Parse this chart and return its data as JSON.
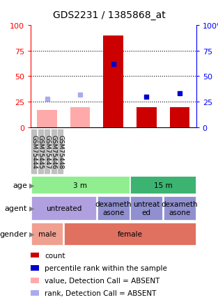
{
  "title": "GDS2231 / 1385868_at",
  "samples": [
    "GSM75444",
    "GSM75445",
    "GSM75447",
    "GSM75446",
    "GSM75448"
  ],
  "count_values": [
    0,
    0,
    90,
    20,
    20
  ],
  "count_absent": [
    17,
    20,
    0,
    0,
    0
  ],
  "percentile_rank": [
    null,
    null,
    62,
    30,
    33
  ],
  "rank_absent": [
    28,
    32,
    null,
    null,
    null
  ],
  "ylim": [
    0,
    100
  ],
  "dotted_lines": [
    25,
    50,
    75
  ],
  "age_groups": [
    {
      "label": "3 m",
      "cols": [
        0,
        1,
        2
      ],
      "color": "#90ee90"
    },
    {
      "label": "15 m",
      "cols": [
        3,
        4
      ],
      "color": "#3cb371"
    }
  ],
  "agent_groups": [
    {
      "label": "untreated",
      "cols": [
        0,
        1
      ],
      "color": "#b0a0e0"
    },
    {
      "label": "dexameth\nasone",
      "cols": [
        2
      ],
      "color": "#9090d0"
    },
    {
      "label": "untreat\ned",
      "cols": [
        3
      ],
      "color": "#9090d0"
    },
    {
      "label": "dexameth\nasone",
      "cols": [
        4
      ],
      "color": "#9090d0"
    }
  ],
  "gender_groups": [
    {
      "label": "male",
      "cols": [
        0
      ],
      "color": "#f0a090"
    },
    {
      "label": "female",
      "cols": [
        1,
        2,
        3,
        4
      ],
      "color": "#e07060"
    }
  ],
  "bar_color_count": "#cc0000",
  "bar_color_absent": "#ffaaaa",
  "dot_color_rank": "#0000cc",
  "dot_color_absent": "#aaaaee",
  "sample_bg_color": "#c0c0c0",
  "legend_items": [
    {
      "color": "#cc0000",
      "label": "count"
    },
    {
      "color": "#0000cc",
      "label": "percentile rank within the sample"
    },
    {
      "color": "#ffaaaa",
      "label": "value, Detection Call = ABSENT"
    },
    {
      "color": "#aaaaee",
      "label": "rank, Detection Call = ABSENT"
    }
  ]
}
